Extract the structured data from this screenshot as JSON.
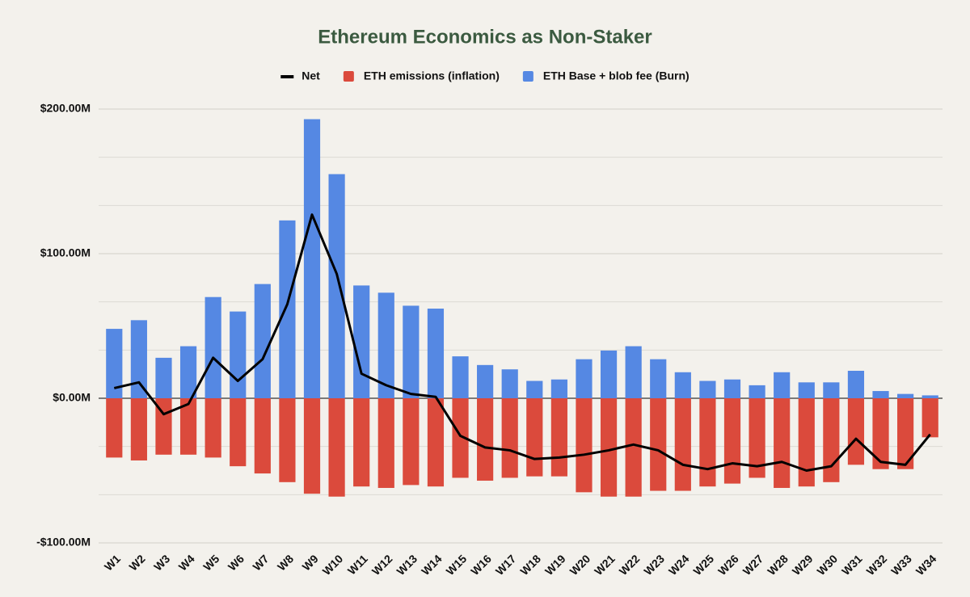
{
  "chart_data": {
    "type": "bar_line",
    "title": "Ethereum Economics as Non-Staker",
    "categories": [
      "W1",
      "W2",
      "W3",
      "W4",
      "W5",
      "W6",
      "W7",
      "W8",
      "W9",
      "W10",
      "W11",
      "W12",
      "W13",
      "W14",
      "W15",
      "W16",
      "W17",
      "W18",
      "W19",
      "W20",
      "W21",
      "W22",
      "W23",
      "W24",
      "W25",
      "W26",
      "W27",
      "W28",
      "W29",
      "W30",
      "W31",
      "W32",
      "W33",
      "W34"
    ],
    "series": [
      {
        "name": "Net",
        "type": "line",
        "color": "#000000",
        "values": [
          7,
          11,
          -11,
          -4,
          28,
          12,
          27,
          65,
          127,
          86,
          17,
          9,
          3,
          1,
          -26,
          -34,
          -36,
          -42,
          -41,
          -39,
          -36,
          -32,
          -36,
          -46,
          -49,
          -45,
          -47,
          -44,
          -50,
          -47,
          -28,
          -44,
          -46,
          -25
        ]
      },
      {
        "name": "ETH emissions (inflation)",
        "type": "bar",
        "color": "#db4a3c",
        "values": [
          -41,
          -43,
          -39,
          -39,
          -41,
          -47,
          -52,
          -58,
          -66,
          -68,
          -61,
          -62,
          -60,
          -61,
          -55,
          -57,
          -55,
          -54,
          -54,
          -65,
          -68,
          -68,
          -64,
          -64,
          -61,
          -59,
          -55,
          -62,
          -61,
          -58,
          -46,
          -49,
          -49,
          -27
        ]
      },
      {
        "name": "ETH Base + blob fee (Burn)",
        "type": "bar",
        "color": "#5588e3",
        "values": [
          48,
          54,
          28,
          36,
          70,
          60,
          79,
          123,
          193,
          155,
          78,
          73,
          64,
          62,
          29,
          23,
          20,
          12,
          13,
          27,
          33,
          36,
          27,
          18,
          12,
          13,
          9,
          18,
          11,
          11,
          19,
          5,
          3,
          2
        ]
      }
    ],
    "ylim": [
      -100,
      200
    ],
    "yticks": [
      {
        "value": -100,
        "label": "-$100.00M"
      },
      {
        "value": 0,
        "label": "$0.00M"
      },
      {
        "value": 100,
        "label": "$100.00M"
      },
      {
        "value": 200,
        "label": "$200.00M"
      }
    ],
    "minor_yticks": [
      -66.67,
      -33.33,
      33.33,
      66.67,
      133.33,
      166.67
    ],
    "grid": true,
    "legend": "top"
  }
}
